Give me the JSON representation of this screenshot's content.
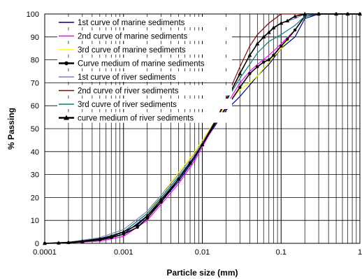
{
  "chart_data": {
    "type": "line",
    "xscale": "log",
    "xlim": [
      0.0001,
      1
    ],
    "ylim": [
      0,
      100
    ],
    "xlabel": "Particle size (mm)",
    "ylabel": "% Passing",
    "x_ticks": [
      "0.0001",
      "0.001",
      "0.01",
      "0.1",
      "1"
    ],
    "y_ticks": [
      "0",
      "10",
      "20",
      "30",
      "40",
      "50",
      "60",
      "70",
      "80",
      "90",
      "100"
    ],
    "grid": true,
    "legend_position": "top-left",
    "series": [
      {
        "name": "1st curve of marine sediments",
        "color": "#00008B",
        "marker": "none",
        "x": [
          0.0001,
          0.0002,
          0.0005,
          0.001,
          0.002,
          0.003,
          0.005,
          0.008,
          0.01,
          0.015,
          0.02,
          0.03,
          0.04,
          0.05,
          0.07,
          0.1,
          0.15,
          0.2,
          0.3,
          0.5,
          1
        ],
        "y": [
          0,
          0.3,
          1.5,
          4,
          12,
          18,
          27,
          37,
          43,
          52,
          58,
          64,
          69,
          73,
          78,
          85,
          90,
          98,
          100,
          100,
          100
        ]
      },
      {
        "name": "2nd curve of marine sediments",
        "color": "#FF00FF",
        "marker": "none",
        "x": [
          0.0001,
          0.0002,
          0.0005,
          0.001,
          0.002,
          0.003,
          0.005,
          0.008,
          0.01,
          0.015,
          0.02,
          0.03,
          0.04,
          0.05,
          0.07,
          0.1,
          0.15,
          0.2,
          0.3,
          0.5,
          1
        ],
        "y": [
          0,
          0.2,
          1,
          3,
          10,
          17,
          26,
          36,
          42,
          53,
          60,
          70,
          75,
          78,
          82,
          87,
          93,
          99,
          100,
          100,
          100
        ]
      },
      {
        "name": "3rd curve of marine sediments",
        "color": "#FFFF00",
        "marker": "none",
        "x": [
          0.0001,
          0.0002,
          0.0005,
          0.001,
          0.002,
          0.003,
          0.005,
          0.008,
          0.01,
          0.015,
          0.02,
          0.03,
          0.04,
          0.05,
          0.07,
          0.1,
          0.15,
          0.2,
          0.3,
          0.5,
          1
        ],
        "y": [
          0,
          0.4,
          2,
          5,
          13,
          21,
          31,
          40,
          45,
          54,
          60,
          67,
          70,
          73,
          79,
          85,
          93,
          99,
          100,
          100,
          100
        ]
      },
      {
        "name": "Curve medium of marine sediments",
        "color": "#000000",
        "marker": "circle",
        "x": [
          0.0001,
          0.00015,
          0.0002,
          0.0003,
          0.0005,
          0.0007,
          0.001,
          0.0015,
          0.002,
          0.003,
          0.005,
          0.007,
          0.01,
          0.015,
          0.02,
          0.03,
          0.04,
          0.05,
          0.06,
          0.07,
          0.08,
          0.1,
          0.12,
          0.15,
          0.2,
          0.3,
          0.5,
          0.7,
          1
        ],
        "y": [
          0,
          0.1,
          0.3,
          0.7,
          1.5,
          2.5,
          4,
          7,
          11,
          18,
          28,
          35,
          43,
          53,
          59,
          68,
          74,
          77,
          79,
          80,
          82,
          86,
          89,
          93,
          99,
          100,
          100,
          100,
          100
        ]
      },
      {
        "name": "1st curve of river sediments",
        "color": "#8080C0",
        "marker": "none",
        "x": [
          0.0001,
          0.0002,
          0.0005,
          0.001,
          0.002,
          0.003,
          0.005,
          0.008,
          0.01,
          0.015,
          0.02,
          0.03,
          0.04,
          0.05,
          0.07,
          0.1,
          0.15,
          0.2,
          0.3,
          0.5,
          1
        ],
        "y": [
          0,
          0.5,
          2.5,
          6,
          14,
          21,
          30,
          39,
          44,
          54,
          62,
          74,
          82,
          87,
          92,
          96,
          98,
          100,
          100,
          100,
          100
        ]
      },
      {
        "name": "2nd curve of river sediments",
        "color": "#8B0000",
        "marker": "none",
        "x": [
          0.0001,
          0.0002,
          0.0005,
          0.001,
          0.002,
          0.003,
          0.005,
          0.008,
          0.01,
          0.015,
          0.02,
          0.03,
          0.04,
          0.05,
          0.07,
          0.1,
          0.15,
          0.2,
          0.3,
          0.5,
          1
        ],
        "y": [
          0,
          0.4,
          2,
          5,
          13,
          20,
          29,
          38,
          43,
          54,
          63,
          77,
          86,
          91,
          96,
          100,
          100,
          100,
          100,
          100,
          100
        ]
      },
      {
        "name": "3rd cuvre of river sediments",
        "color": "#008080",
        "marker": "none",
        "x": [
          0.0001,
          0.0002,
          0.0005,
          0.001,
          0.002,
          0.003,
          0.005,
          0.008,
          0.01,
          0.015,
          0.02,
          0.03,
          0.04,
          0.05,
          0.07,
          0.1,
          0.15,
          0.2,
          0.3,
          0.5,
          1
        ],
        "y": [
          0,
          0.4,
          2,
          5,
          13,
          20,
          29,
          38,
          43,
          54,
          62,
          72,
          78,
          83,
          88,
          91,
          95,
          99,
          100,
          100,
          100
        ]
      },
      {
        "name": "curve medium of river sediments",
        "color": "#000000",
        "marker": "triangle",
        "x": [
          0.0001,
          0.00015,
          0.0002,
          0.0003,
          0.0005,
          0.0007,
          0.001,
          0.0015,
          0.002,
          0.003,
          0.005,
          0.007,
          0.01,
          0.015,
          0.02,
          0.03,
          0.04,
          0.05,
          0.06,
          0.07,
          0.08,
          0.1,
          0.12,
          0.15,
          0.2,
          0.3,
          0.5,
          0.7,
          1
        ],
        "y": [
          0,
          0.2,
          0.4,
          0.9,
          2,
          3,
          5,
          8,
          12,
          19,
          28,
          35,
          43,
          54,
          62,
          74,
          82,
          87,
          90,
          92,
          94,
          96,
          97,
          99,
          100,
          100,
          100,
          100,
          100
        ]
      }
    ]
  }
}
